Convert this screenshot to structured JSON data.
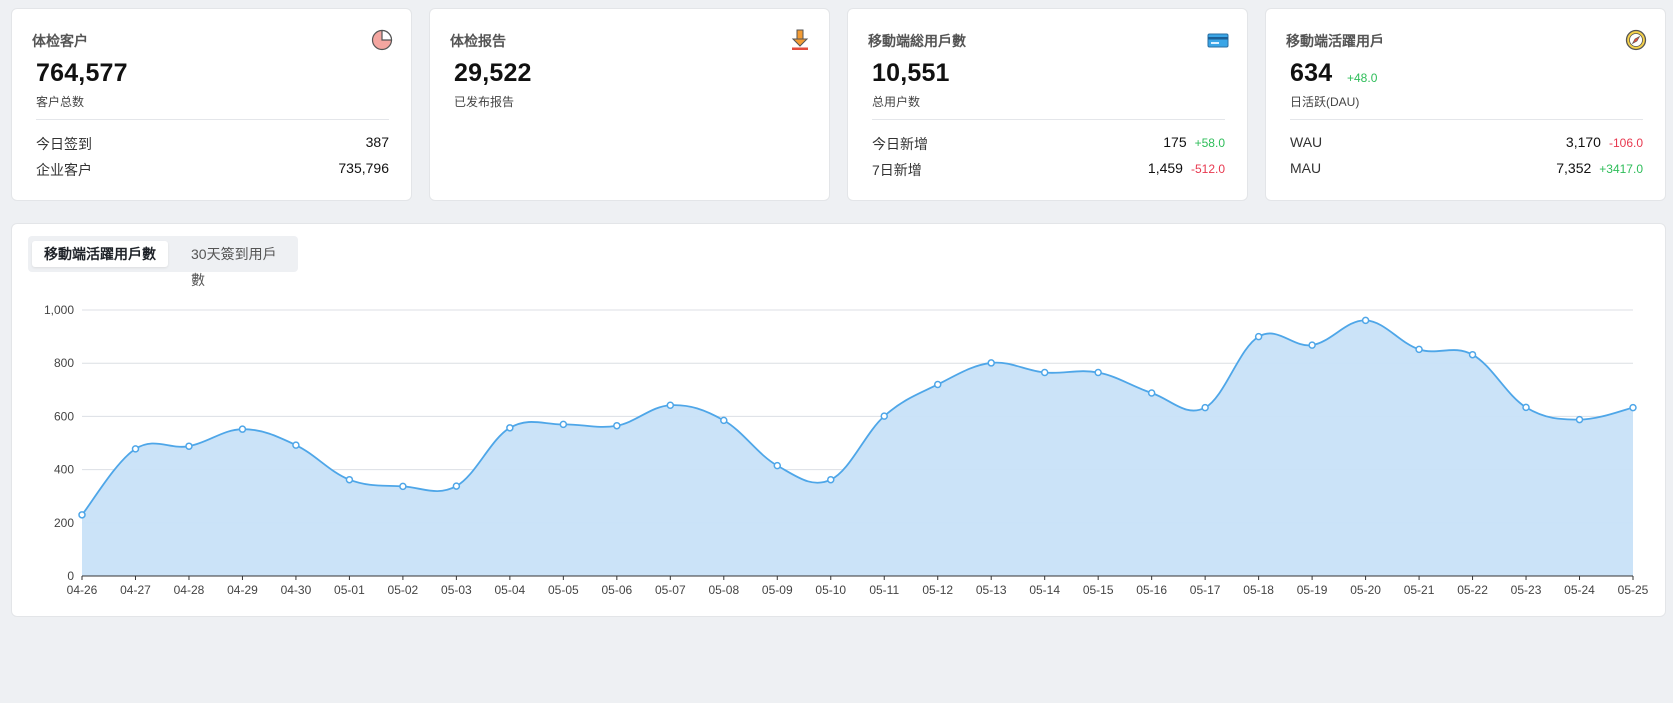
{
  "cards": [
    {
      "title": "体检客户",
      "icon": "pie-chart-icon",
      "main_value": "764,577",
      "main_delta": "",
      "sub_label": "客户总数",
      "rows": [
        {
          "label": "今日签到",
          "value": "387",
          "delta": ""
        },
        {
          "label": "企业客户",
          "value": "735,796",
          "delta": ""
        }
      ]
    },
    {
      "title": "体检报告",
      "icon": "download-icon",
      "main_value": "29,522",
      "main_delta": "",
      "sub_label": "已发布报告",
      "rows": []
    },
    {
      "title": "移動端総用戶數",
      "icon": "id-card-icon",
      "main_value": "10,551",
      "main_delta": "",
      "sub_label": "总用户数",
      "rows": [
        {
          "label": "今日新增",
          "value": "175",
          "delta": "+58.0",
          "delta_dir": "up"
        },
        {
          "label": "7日新增",
          "value": "1,459",
          "delta": "-512.0",
          "delta_dir": "down"
        }
      ]
    },
    {
      "title": "移動端活躍用戶",
      "icon": "compass-icon",
      "main_value": "634",
      "main_delta": "+48.0",
      "sub_label": "日活跃(DAU)",
      "rows": [
        {
          "label": "WAU",
          "value": "3,170",
          "delta": "-106.0",
          "delta_dir": "down"
        },
        {
          "label": "MAU",
          "value": "7,352",
          "delta": "+3417.0",
          "delta_dir": "up"
        }
      ]
    }
  ],
  "chart_tabs": [
    {
      "label": "移動端活躍用戶數",
      "active": true
    },
    {
      "label": "30天簽到用戶數",
      "active": false
    }
  ],
  "colors": {
    "line": "#4ea6e8",
    "area": "#c8e2f8",
    "up": "#2ebd59",
    "down": "#e8384f"
  },
  "chart_data": {
    "type": "area",
    "smooth": true,
    "x": [
      "04-26",
      "04-27",
      "04-28",
      "04-29",
      "04-30",
      "05-01",
      "05-02",
      "05-03",
      "05-04",
      "05-05",
      "05-06",
      "05-07",
      "05-08",
      "05-09",
      "05-10",
      "05-11",
      "05-12",
      "05-13",
      "05-14",
      "05-15",
      "05-16",
      "05-17",
      "05-18",
      "05-19",
      "05-20",
      "05-21",
      "05-22",
      "05-23",
      "05-24",
      "05-25"
    ],
    "values": [
      230,
      478,
      488,
      552,
      492,
      362,
      337,
      338,
      557,
      570,
      565,
      642,
      585,
      415,
      362,
      601,
      720,
      801,
      765,
      765,
      688,
      633,
      900,
      868,
      961,
      852,
      832,
      634,
      588,
      633
    ],
    "ylim": [
      0,
      1000
    ],
    "yticks": [
      "0",
      "200",
      "400",
      "600",
      "800",
      "1,000"
    ],
    "grid": true
  }
}
